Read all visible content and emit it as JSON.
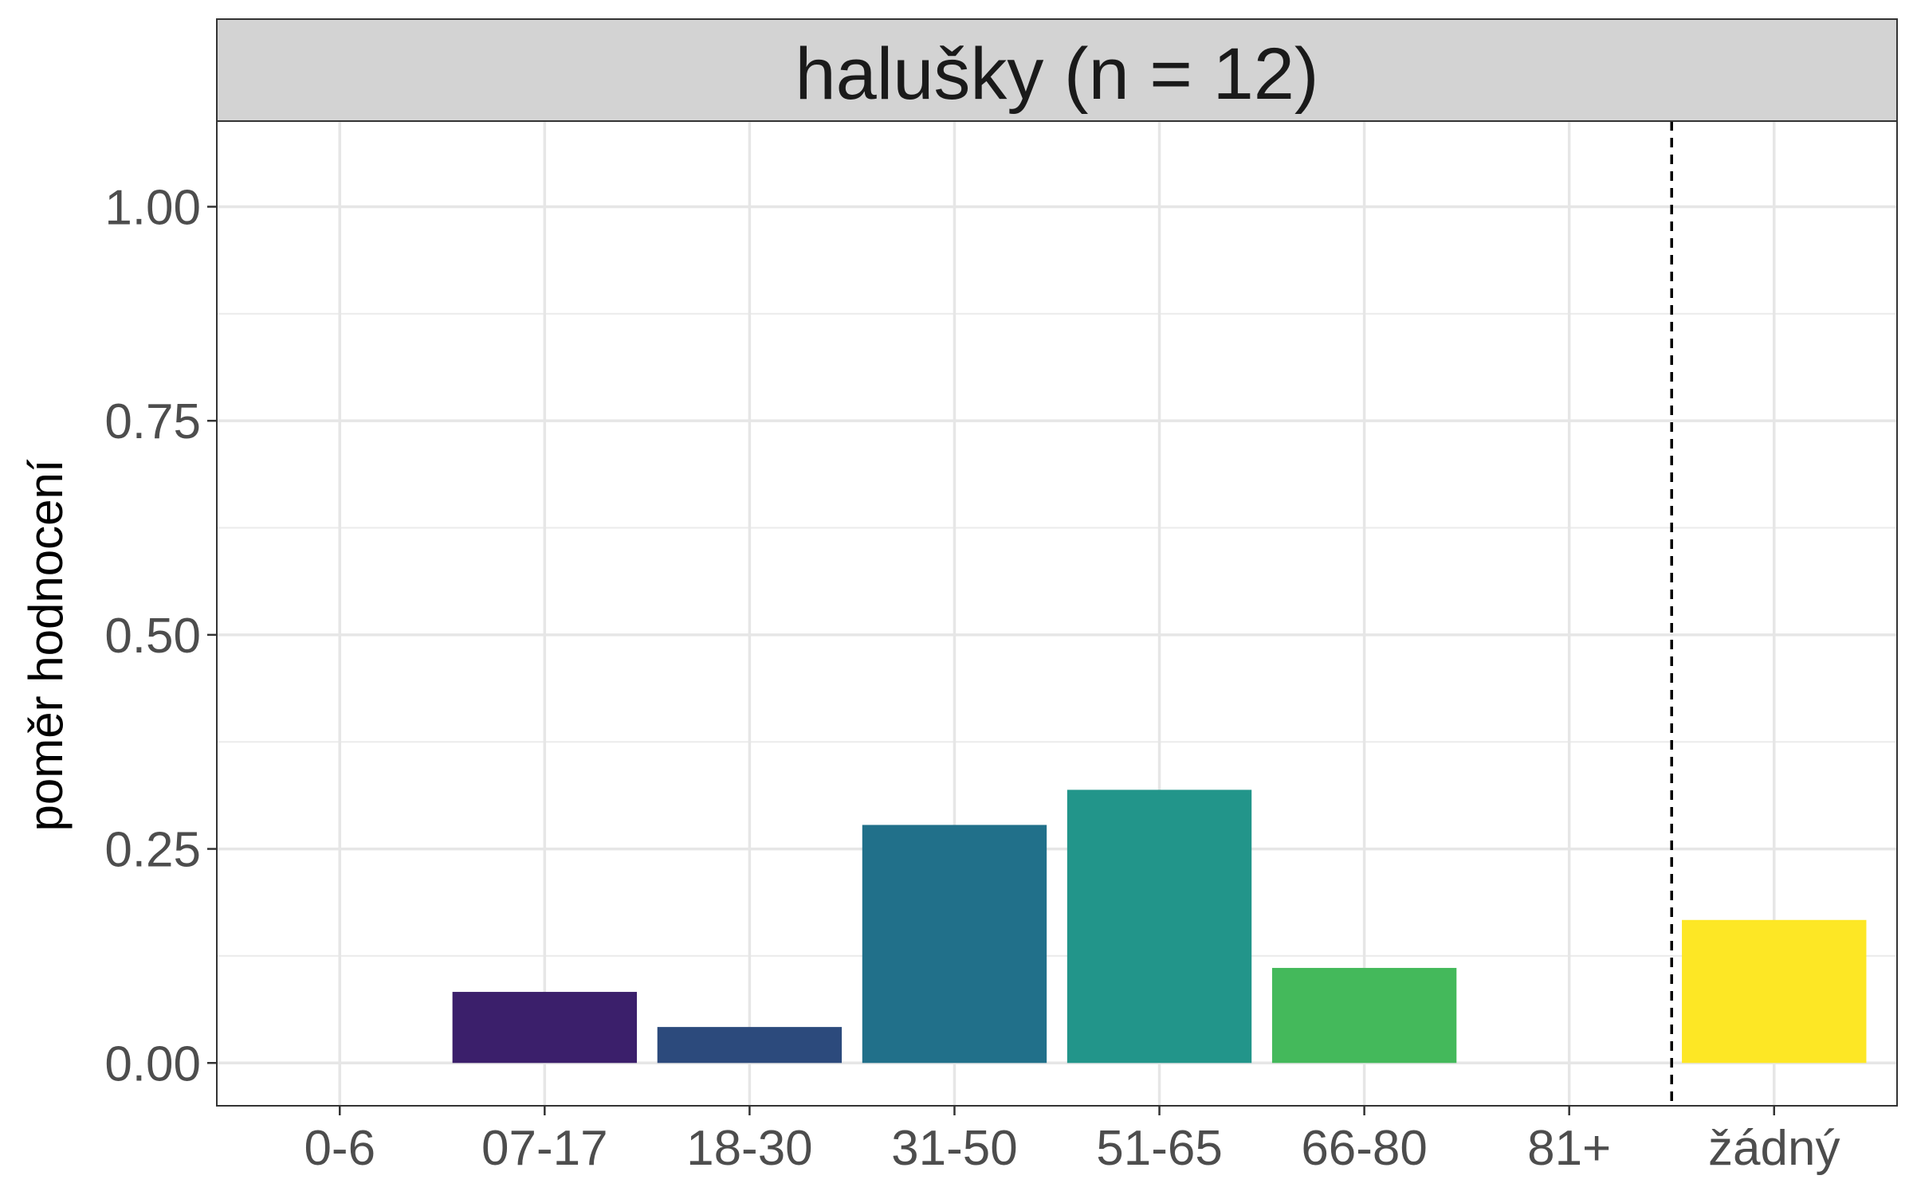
{
  "chart_data": {
    "type": "bar",
    "title": "halušky (n = 12)",
    "xlabel": "",
    "ylabel": "poměr hodnocení",
    "categories": [
      "0-6",
      "07-17",
      "18-30",
      "31-50",
      "51-65",
      "66-80",
      "81+",
      "žádný"
    ],
    "values": [
      0,
      0.083,
      0.042,
      0.278,
      0.319,
      0.111,
      0,
      0.167
    ],
    "colors": [
      "#440154",
      "#3b1f6b",
      "#2c4a7c",
      "#21708a",
      "#22958a",
      "#44b95b",
      "#7ad151",
      "#fde725"
    ],
    "ylim": [
      -0.05,
      1.1
    ],
    "yticks": [
      0.0,
      0.25,
      0.5,
      0.75,
      1.0
    ],
    "ytick_labels": [
      "0.00",
      "0.25",
      "0.50",
      "0.75",
      "1.00"
    ],
    "separator_after_category": "81+",
    "separator_style": "dashed",
    "grid": true,
    "legend": "none"
  }
}
